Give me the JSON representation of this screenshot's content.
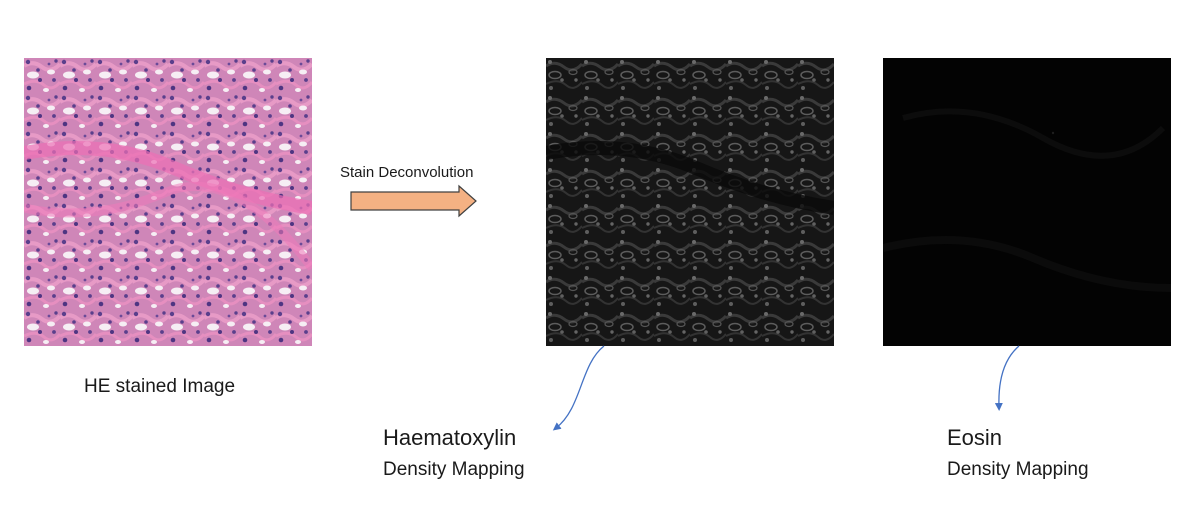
{
  "figure": {
    "input_caption": "HE stained Image",
    "process_label": "Stain Deconvolution",
    "outputs": [
      {
        "title": "Haematoxylin",
        "subtitle": "Density Mapping"
      },
      {
        "title": "Eosin",
        "subtitle": "Density Mapping"
      }
    ]
  },
  "colors": {
    "arrow_fill": "#f4b183",
    "arrow_stroke": "#404040",
    "callout": "#4472c4",
    "he_background": "#c97fb0",
    "hema_background": "#141414",
    "eosin_background": "#020202"
  }
}
